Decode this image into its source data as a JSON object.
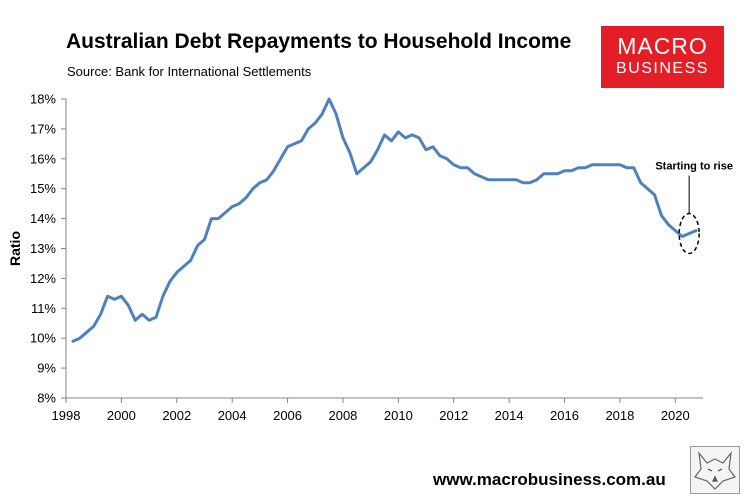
{
  "header": {
    "title": "Australian Debt Repayments to Household Income",
    "source": "Source: Bank for International Settlements"
  },
  "logo": {
    "line1": "MACRO",
    "line2": "BUSINESS",
    "color": "#e41e26"
  },
  "footer": {
    "url": "www.macrobusiness.com.au"
  },
  "chart_data": {
    "type": "line",
    "title": "Australian Debt Repayments to Household Income",
    "subtitle": "Source: Bank for International Settlements",
    "xlabel": "",
    "ylabel": "Ratio",
    "xlim": [
      1998,
      2021
    ],
    "ylim": [
      8,
      18
    ],
    "x_ticks": [
      1998,
      2000,
      2002,
      2004,
      2006,
      2008,
      2010,
      2012,
      2014,
      2016,
      2018,
      2020
    ],
    "y_ticks": [
      8,
      9,
      10,
      11,
      12,
      13,
      14,
      15,
      16,
      17,
      18
    ],
    "y_tick_labels": [
      "8%",
      "9%",
      "10%",
      "11%",
      "12%",
      "13%",
      "14%",
      "15%",
      "16%",
      "17%",
      "18%"
    ],
    "grid": false,
    "series": [
      {
        "color": "#4f81bd",
        "x": [
          1998.25,
          1998.5,
          1998.75,
          1999.0,
          1999.25,
          1999.5,
          1999.75,
          2000.0,
          2000.25,
          2000.5,
          2000.75,
          2001.0,
          2001.25,
          2001.5,
          2001.75,
          2002.0,
          2002.25,
          2002.5,
          2002.75,
          2003.0,
          2003.25,
          2003.5,
          2003.75,
          2004.0,
          2004.25,
          2004.5,
          2004.75,
          2005.0,
          2005.25,
          2005.5,
          2005.75,
          2006.0,
          2006.25,
          2006.5,
          2006.75,
          2007.0,
          2007.25,
          2007.5,
          2007.75,
          2008.0,
          2008.25,
          2008.5,
          2008.75,
          2009.0,
          2009.25,
          2009.5,
          2009.75,
          2010.0,
          2010.25,
          2010.5,
          2010.75,
          2011.0,
          2011.25,
          2011.5,
          2011.75,
          2012.0,
          2012.25,
          2012.5,
          2012.75,
          2013.0,
          2013.25,
          2013.5,
          2013.75,
          2014.0,
          2014.25,
          2014.5,
          2014.75,
          2015.0,
          2015.25,
          2015.5,
          2015.75,
          2016.0,
          2016.25,
          2016.5,
          2016.75,
          2017.0,
          2017.25,
          2017.5,
          2017.75,
          2018.0,
          2018.25,
          2018.5,
          2018.75,
          2019.0,
          2019.25,
          2019.5,
          2019.75,
          2020.0,
          2020.25,
          2020.5,
          2020.75
        ],
        "y": [
          9.9,
          10.0,
          10.2,
          10.4,
          10.8,
          11.4,
          11.3,
          11.4,
          11.1,
          10.6,
          10.8,
          10.6,
          10.7,
          11.4,
          11.9,
          12.2,
          12.4,
          12.6,
          13.1,
          13.3,
          14.0,
          14.0,
          14.2,
          14.4,
          14.5,
          14.7,
          15.0,
          15.2,
          15.3,
          15.6,
          16.0,
          16.4,
          16.5,
          16.6,
          17.0,
          17.2,
          17.5,
          18.0,
          17.5,
          16.7,
          16.2,
          15.5,
          15.7,
          15.9,
          16.3,
          16.8,
          16.6,
          16.9,
          16.7,
          16.8,
          16.7,
          16.3,
          16.4,
          16.1,
          16.0,
          15.8,
          15.7,
          15.7,
          15.5,
          15.4,
          15.3,
          15.3,
          15.3,
          15.3,
          15.3,
          15.2,
          15.2,
          15.3,
          15.5,
          15.5,
          15.5,
          15.6,
          15.6,
          15.7,
          15.7,
          15.8,
          15.8,
          15.8,
          15.8,
          15.8,
          15.7,
          15.7,
          15.2,
          15.0,
          14.8,
          14.1,
          13.8,
          13.6,
          13.4,
          13.5,
          13.6
        ]
      }
    ],
    "annotations": [
      {
        "text": "Starting to rise",
        "x": 2020.5,
        "y": 13.5
      }
    ]
  }
}
